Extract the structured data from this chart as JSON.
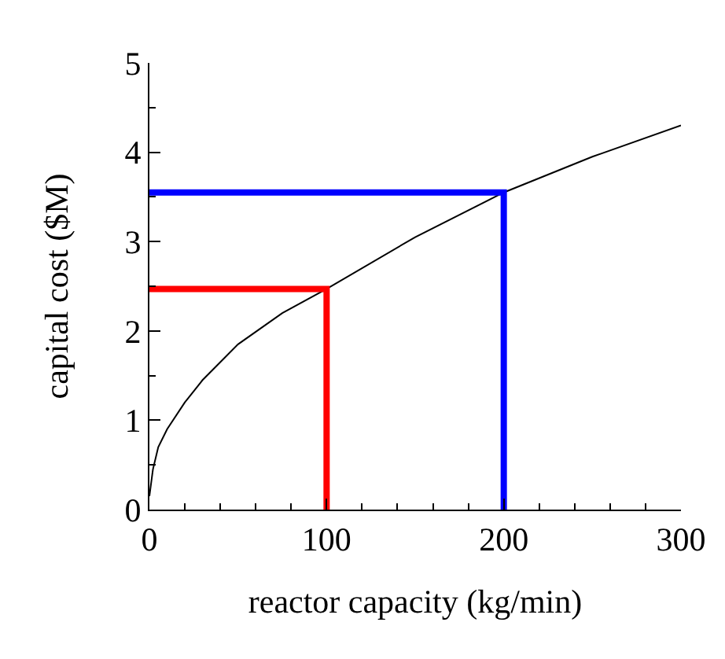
{
  "chart_data": {
    "type": "line",
    "xlabel": "reactor capacity (kg/min)",
    "ylabel": "capital cost ($M)",
    "xlim": [
      0,
      300
    ],
    "xticks": [
      0,
      100,
      200,
      300
    ],
    "ylim": [
      0,
      5
    ],
    "yticks": [
      0,
      1,
      2,
      3,
      4,
      5
    ],
    "grid": false,
    "marker": "none",
    "series": [
      {
        "color": "#000000",
        "x": [
          0,
          2,
          5,
          10,
          20,
          30,
          50,
          75,
          100,
          150,
          200,
          250,
          300
        ],
        "values": [
          0.15,
          0.45,
          0.7,
          0.9,
          1.2,
          1.45,
          1.85,
          2.2,
          2.47,
          3.05,
          3.55,
          3.95,
          4.3
        ]
      },
      {
        "color": "#ff0000",
        "x": [
          0,
          100,
          100
        ],
        "values": [
          2.47,
          2.47,
          0
        ]
      },
      {
        "color": "#0000ff",
        "x": [
          0,
          200,
          200
        ],
        "values": [
          3.55,
          3.55,
          0
        ]
      }
    ]
  }
}
